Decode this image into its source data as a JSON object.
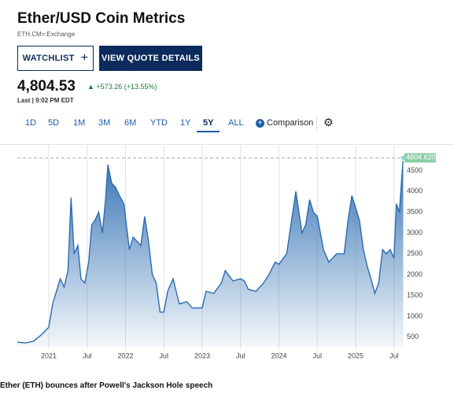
{
  "header": {
    "title": "Ether/USD Coin Metrics",
    "symbol": "ETH.CM=:Exchange"
  },
  "buttons": {
    "watchlist": "WATCHLIST",
    "quote": "VIEW QUOTE DETAILS"
  },
  "quote": {
    "price": "4,804.53",
    "change": "+573.26 (+13.55%)",
    "last": "Last | 9:02 PM EDT"
  },
  "ranges": [
    "1D",
    "5D",
    "1M",
    "3M",
    "6M",
    "YTD",
    "1Y",
    "5Y",
    "ALL"
  ],
  "selected_range": "5Y",
  "comparison": "Comparison",
  "chart_data": {
    "type": "area",
    "color": "#2b6cb0",
    "x": [
      2020.59,
      2020.7,
      2020.8,
      2020.9,
      2021.0,
      2021.05,
      2021.1,
      2021.15,
      2021.2,
      2021.25,
      2021.29,
      2021.33,
      2021.38,
      2021.42,
      2021.47,
      2021.52,
      2021.56,
      2021.6,
      2021.65,
      2021.7,
      2021.74,
      2021.77,
      2021.82,
      2021.87,
      2021.92,
      2021.98,
      2022.05,
      2022.1,
      2022.2,
      2022.25,
      2022.3,
      2022.35,
      2022.4,
      2022.45,
      2022.5,
      2022.55,
      2022.62,
      2022.7,
      2022.8,
      2022.87,
      2022.95,
      2023.0,
      2023.05,
      2023.15,
      2023.25,
      2023.3,
      2023.4,
      2023.5,
      2023.55,
      2023.6,
      2023.7,
      2023.8,
      2023.87,
      2023.95,
      2024.0,
      2024.1,
      2024.18,
      2024.22,
      2024.3,
      2024.35,
      2024.4,
      2024.45,
      2024.5,
      2024.58,
      2024.65,
      2024.75,
      2024.85,
      2024.9,
      2024.95,
      2025.0,
      2025.05,
      2025.1,
      2025.15,
      2025.2,
      2025.25,
      2025.3,
      2025.35,
      2025.4,
      2025.45,
      2025.5,
      2025.53,
      2025.57,
      2025.6,
      2025.62
    ],
    "values": [
      380,
      360,
      400,
      550,
      740,
      1300,
      1600,
      1900,
      1700,
      2100,
      3850,
      2500,
      2700,
      1900,
      1800,
      2300,
      3200,
      3300,
      3500,
      3000,
      3800,
      4640,
      4200,
      4100,
      3900,
      3700,
      2600,
      2900,
      2700,
      3400,
      2800,
      2000,
      1800,
      1100,
      1100,
      1600,
      1900,
      1300,
      1350,
      1200,
      1200,
      1200,
      1600,
      1550,
      1800,
      2100,
      1850,
      1900,
      1850,
      1650,
      1600,
      1800,
      2000,
      2300,
      2250,
      2500,
      3500,
      4000,
      3000,
      3200,
      3800,
      3500,
      3400,
      2600,
      2300,
      2500,
      2500,
      3300,
      3900,
      3600,
      3300,
      2600,
      2200,
      1900,
      1550,
      1800,
      2600,
      2500,
      2600,
      2400,
      3700,
      3500,
      4300,
      4804.62
    ],
    "last_value_label": "4804.6200",
    "xlim": [
      2020.59,
      2025.615
    ],
    "xticks": [
      2021,
      {
        "value": 2021.5,
        "label": "Jul"
      },
      2022,
      {
        "value": 2022.5,
        "label": "Jul"
      },
      2023,
      {
        "value": 2023.5,
        "label": "Jul"
      },
      2024,
      {
        "value": 2024.5,
        "label": "Jul"
      },
      2025,
      {
        "value": 2025.5,
        "label": "Jul"
      }
    ],
    "ylim": [
      270,
      5000
    ],
    "yticks": [
      500,
      1000,
      1500,
      2000,
      2500,
      3000,
      3500,
      4000,
      4500
    ],
    "grid": true
  },
  "caption": "Ether (ETH) bounces after Powell's Jackson Hole speech"
}
